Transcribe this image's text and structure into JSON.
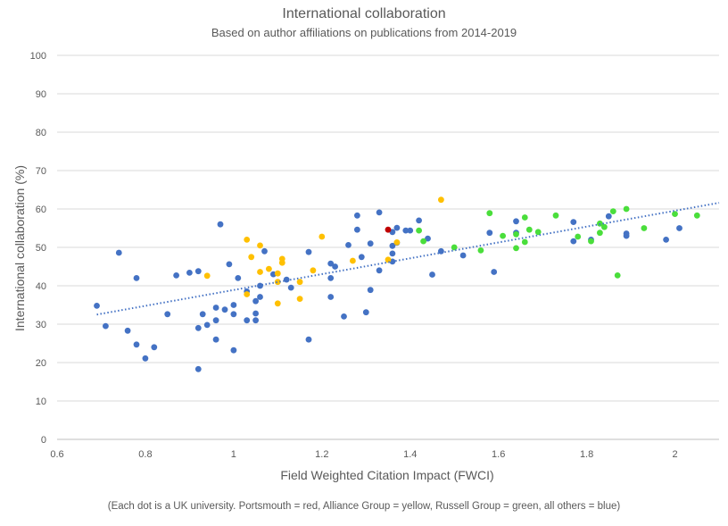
{
  "chart_data": {
    "type": "scatter",
    "title": "International collaboration",
    "subtitle": "Based on author affiliations on publications from 2014-2019",
    "xlabel": "Field Weighted Citation Impact (FWCI)",
    "ylabel": "International collaboration (%)",
    "xlim": [
      0.6,
      2.1
    ],
    "ylim": [
      0,
      100
    ],
    "xticks": [
      0.6,
      0.8,
      1,
      1.2,
      1.4,
      1.6,
      1.8,
      2
    ],
    "xtick_labels": [
      "0.6",
      "0.8",
      "1",
      "1.2",
      "1.4",
      "1.6",
      "1.8",
      "2"
    ],
    "yticks": [
      0,
      10,
      20,
      30,
      40,
      50,
      60,
      70,
      80,
      90,
      100
    ],
    "ytick_labels": [
      "0",
      "10",
      "20",
      "30",
      "40",
      "50",
      "60",
      "70",
      "80",
      "90",
      "100"
    ],
    "grid": "horizontal",
    "footnote": "(Each dot is a UK university. Portsmouth = red, Alliance Group = yellow, Russell Group = green, all others = blue)",
    "trendline": {
      "style": "dotted",
      "color": "#4472c4",
      "x": [
        0.69,
        2.1
      ],
      "y": [
        32.5,
        61.6
      ]
    },
    "series": [
      {
        "name": "Portsmouth",
        "color": "#c00000",
        "points": [
          [
            1.35,
            54.6
          ]
        ]
      },
      {
        "name": "Alliance Group",
        "color": "#ffc000",
        "points": [
          [
            0.94,
            42.6
          ],
          [
            1.03,
            52
          ],
          [
            1.03,
            37.8
          ],
          [
            1.04,
            47.5
          ],
          [
            1.06,
            50.5
          ],
          [
            1.06,
            43.6
          ],
          [
            1.08,
            44.4
          ],
          [
            1.1,
            43.2
          ],
          [
            1.1,
            41
          ],
          [
            1.1,
            35.4
          ],
          [
            1.11,
            47
          ],
          [
            1.11,
            46
          ],
          [
            1.15,
            36.6
          ],
          [
            1.15,
            41
          ],
          [
            1.18,
            44
          ],
          [
            1.2,
            52.8
          ],
          [
            1.27,
            46.5
          ],
          [
            1.35,
            46.8
          ],
          [
            1.37,
            51.3
          ],
          [
            1.47,
            62.4
          ]
        ]
      },
      {
        "name": "Russell Group",
        "color": "#4ade3b",
        "points": [
          [
            1.42,
            54.4
          ],
          [
            1.43,
            51.6
          ],
          [
            1.5,
            50
          ],
          [
            1.56,
            49.2
          ],
          [
            1.58,
            58.9
          ],
          [
            1.61,
            53
          ],
          [
            1.64,
            49.8
          ],
          [
            1.64,
            53.4
          ],
          [
            1.66,
            57.8
          ],
          [
            1.66,
            51.4
          ],
          [
            1.67,
            54.6
          ],
          [
            1.69,
            54
          ],
          [
            1.73,
            58.3
          ],
          [
            1.78,
            52.8
          ],
          [
            1.81,
            51.6
          ],
          [
            1.83,
            53.8
          ],
          [
            1.84,
            55.3
          ],
          [
            1.83,
            56.2
          ],
          [
            1.86,
            59.4
          ],
          [
            1.87,
            42.7
          ],
          [
            1.89,
            60
          ],
          [
            1.93,
            55
          ],
          [
            2.0,
            58.7
          ],
          [
            2.05,
            58.3
          ]
        ]
      },
      {
        "name": "All others",
        "color": "#4472c4",
        "points": [
          [
            0.69,
            34.8
          ],
          [
            0.71,
            29.5
          ],
          [
            0.74,
            48.6
          ],
          [
            0.76,
            28.3
          ],
          [
            0.78,
            42
          ],
          [
            0.78,
            24.7
          ],
          [
            0.8,
            21.1
          ],
          [
            0.82,
            24
          ],
          [
            0.85,
            32.6
          ],
          [
            0.87,
            42.7
          ],
          [
            0.9,
            43.4
          ],
          [
            0.92,
            43.8
          ],
          [
            0.92,
            29
          ],
          [
            0.92,
            18.3
          ],
          [
            0.93,
            32.6
          ],
          [
            0.94,
            29.8
          ],
          [
            0.96,
            34.3
          ],
          [
            0.96,
            31
          ],
          [
            0.96,
            26
          ],
          [
            0.97,
            56
          ],
          [
            0.98,
            33.8
          ],
          [
            0.99,
            45.6
          ],
          [
            1.0,
            35
          ],
          [
            1.0,
            32.6
          ],
          [
            1.0,
            23.2
          ],
          [
            1.01,
            42
          ],
          [
            1.03,
            38.5
          ],
          [
            1.03,
            31
          ],
          [
            1.05,
            36
          ],
          [
            1.05,
            32.8
          ],
          [
            1.05,
            31
          ],
          [
            1.06,
            40
          ],
          [
            1.06,
            37.1
          ],
          [
            1.07,
            49
          ],
          [
            1.09,
            43
          ],
          [
            1.12,
            41.6
          ],
          [
            1.13,
            39.5
          ],
          [
            1.17,
            48.8
          ],
          [
            1.17,
            26
          ],
          [
            1.22,
            45.8
          ],
          [
            1.22,
            42
          ],
          [
            1.22,
            37.1
          ],
          [
            1.23,
            45
          ],
          [
            1.25,
            32
          ],
          [
            1.26,
            50.6
          ],
          [
            1.28,
            58.3
          ],
          [
            1.28,
            54.6
          ],
          [
            1.29,
            47.5
          ],
          [
            1.3,
            33.1
          ],
          [
            1.31,
            51
          ],
          [
            1.31,
            38.9
          ],
          [
            1.33,
            59.1
          ],
          [
            1.33,
            44
          ],
          [
            1.36,
            54
          ],
          [
            1.36,
            50.4
          ],
          [
            1.36,
            48.4
          ],
          [
            1.36,
            46.3
          ],
          [
            1.37,
            55.1
          ],
          [
            1.37,
            51.2
          ],
          [
            1.39,
            54.4
          ],
          [
            1.4,
            54.4
          ],
          [
            1.42,
            57
          ],
          [
            1.44,
            52.3
          ],
          [
            1.45,
            42.9
          ],
          [
            1.47,
            49
          ],
          [
            1.52,
            47.9
          ],
          [
            1.58,
            53.8
          ],
          [
            1.59,
            43.6
          ],
          [
            1.64,
            56.8
          ],
          [
            1.64,
            53.8
          ],
          [
            1.77,
            56.6
          ],
          [
            1.77,
            51.6
          ],
          [
            1.81,
            52
          ],
          [
            1.85,
            58.1
          ],
          [
            1.89,
            53.6
          ],
          [
            1.89,
            53
          ],
          [
            1.98,
            52
          ],
          [
            2.01,
            55
          ]
        ]
      }
    ]
  }
}
